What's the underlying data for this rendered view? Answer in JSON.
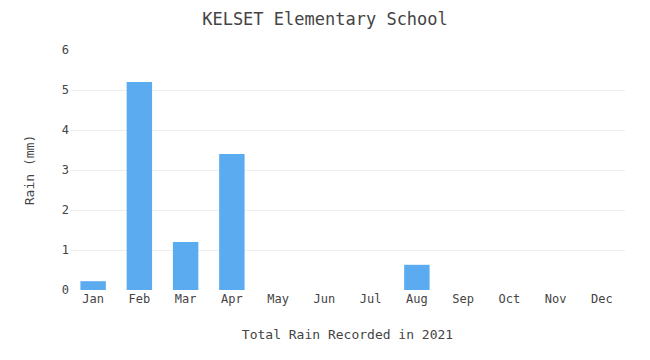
{
  "chart_data": {
    "type": "bar",
    "title": "KELSET Elementary School",
    "xlabel": "Total Rain Recorded in 2021",
    "ylabel": "Rain (mm)",
    "categories": [
      "Jan",
      "Feb",
      "Mar",
      "Apr",
      "May",
      "Jun",
      "Jul",
      "Aug",
      "Sep",
      "Oct",
      "Nov",
      "Dec"
    ],
    "values": [
      0.22,
      5.2,
      1.2,
      3.4,
      0,
      0,
      0,
      0.63,
      0,
      0,
      0,
      0
    ],
    "color": "#5aabf0",
    "ylim": [
      0,
      6
    ],
    "yticks": [
      0,
      1,
      2,
      3,
      4,
      5,
      6
    ],
    "grid": true
  }
}
